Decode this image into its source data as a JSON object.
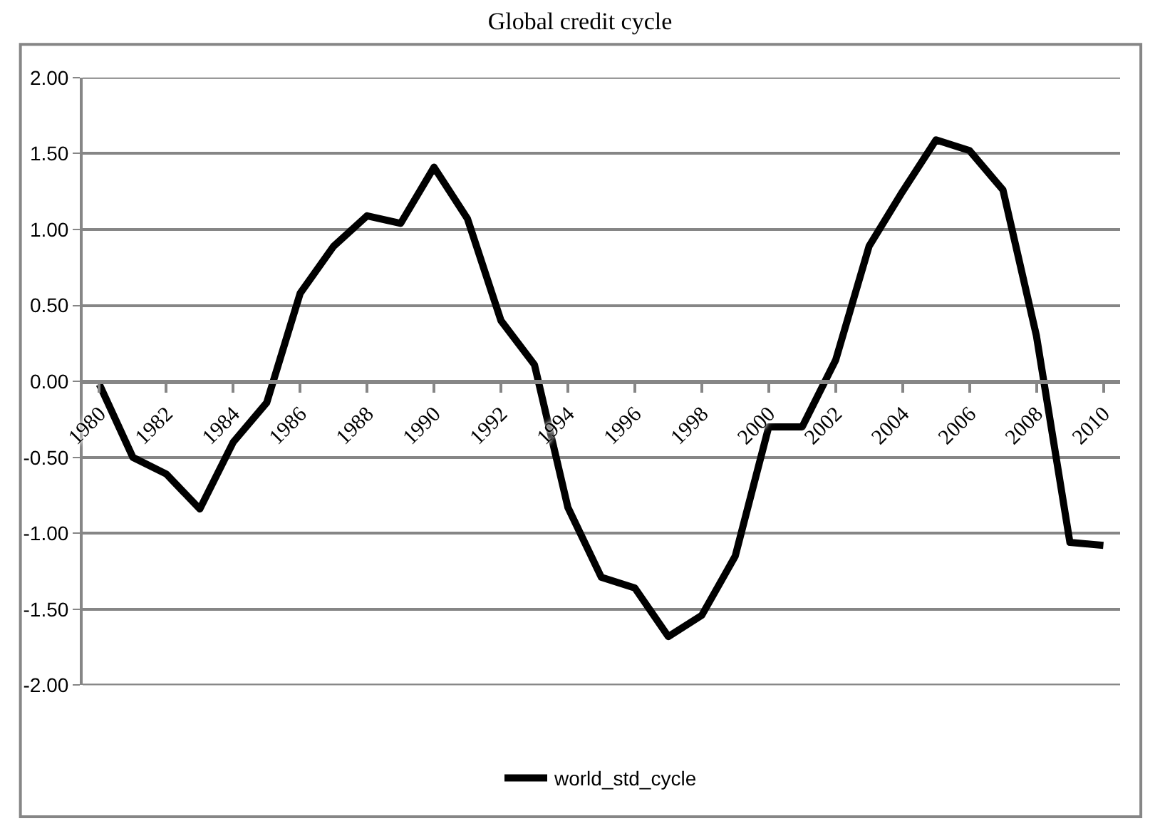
{
  "chart_data": {
    "type": "line",
    "title": "Global credit cycle",
    "categories": [
      "1980",
      null,
      "1982",
      null,
      "1984",
      null,
      "1986",
      null,
      "1988",
      null,
      "1990",
      null,
      "1992",
      null,
      "1994",
      null,
      "1996",
      null,
      "1998",
      null,
      "2000",
      null,
      "2002",
      null,
      "2004",
      null,
      "2006",
      null,
      "2008",
      null,
      "2010"
    ],
    "series": [
      {
        "name": "world_std_cycle",
        "color": "#000000",
        "values": [
          -0.02,
          -0.5,
          -0.61,
          -0.84,
          -0.4,
          -0.14,
          0.58,
          0.89,
          1.09,
          1.04,
          1.41,
          1.07,
          0.4,
          0.11,
          -0.83,
          -1.29,
          -1.36,
          -1.68,
          -1.54,
          -1.15,
          -0.3,
          -0.3,
          0.14,
          0.89,
          1.25,
          1.59,
          1.52,
          1.26,
          0.3,
          -1.06,
          -1.08
        ]
      }
    ],
    "ylim": [
      -2,
      2
    ],
    "yticks": [
      {
        "value": -2,
        "label": "-2.00"
      },
      {
        "value": -1.5,
        "label": "-1.50"
      },
      {
        "value": -1,
        "label": "-1.00"
      },
      {
        "value": -0.5,
        "label": "-0.50"
      },
      {
        "value": 0,
        "label": "0.00"
      },
      {
        "value": 0.5,
        "label": "0.50"
      },
      {
        "value": 1,
        "label": "1.00"
      },
      {
        "value": 1.5,
        "label": "1.50"
      },
      {
        "value": 2,
        "label": "2.00"
      }
    ],
    "grid": "y",
    "legend": "bottom",
    "marker": "none",
    "line_style": "solid"
  }
}
